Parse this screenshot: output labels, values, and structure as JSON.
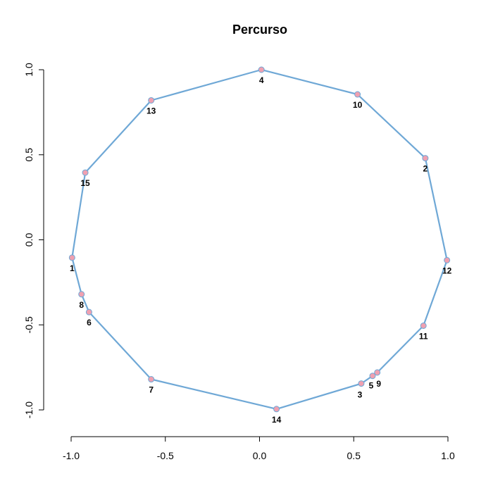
{
  "chart_data": {
    "type": "line",
    "title": "Percurso",
    "xlabel": "",
    "ylabel": "",
    "xlim": [
      -1.0,
      1.0
    ],
    "ylim": [
      -1.0,
      1.0
    ],
    "x_ticks": [
      -1.0,
      -0.5,
      0.0,
      0.5,
      1.0
    ],
    "x_tick_labels": [
      "-1.0",
      "-0.5",
      "0.0",
      "0.5",
      "1.0"
    ],
    "y_ticks": [
      -1.0,
      -0.5,
      0.0,
      0.5,
      1.0
    ],
    "y_tick_labels": [
      "-1.0",
      "-0.5",
      "0.0",
      "0.5",
      "1.0"
    ],
    "grid": false,
    "line_color": "#6fa8d6",
    "point_color": "#f0a0b0",
    "points": [
      {
        "label": "1",
        "x": -0.995,
        "y": -0.105
      },
      {
        "label": "2",
        "x": 0.88,
        "y": 0.48
      },
      {
        "label": "3",
        "x": 0.54,
        "y": -0.845
      },
      {
        "label": "4",
        "x": 0.01,
        "y": 1.0
      },
      {
        "label": "5",
        "x": 0.6,
        "y": -0.8
      },
      {
        "label": "6",
        "x": -0.905,
        "y": -0.425
      },
      {
        "label": "7",
        "x": -0.575,
        "y": -0.82
      },
      {
        "label": "8",
        "x": -0.945,
        "y": -0.32
      },
      {
        "label": "9",
        "x": 0.625,
        "y": -0.78
      },
      {
        "label": "10",
        "x": 0.52,
        "y": 0.855
      },
      {
        "label": "11",
        "x": 0.87,
        "y": -0.505
      },
      {
        "label": "12",
        "x": 0.995,
        "y": -0.12
      },
      {
        "label": "13",
        "x": -0.575,
        "y": 0.82
      },
      {
        "label": "14",
        "x": 0.09,
        "y": -0.995
      },
      {
        "label": "15",
        "x": -0.925,
        "y": 0.395
      }
    ],
    "path_order": [
      "1",
      "15",
      "13",
      "4",
      "10",
      "2",
      "12",
      "11",
      "9",
      "5",
      "3",
      "14",
      "7",
      "6",
      "8",
      "1"
    ]
  }
}
